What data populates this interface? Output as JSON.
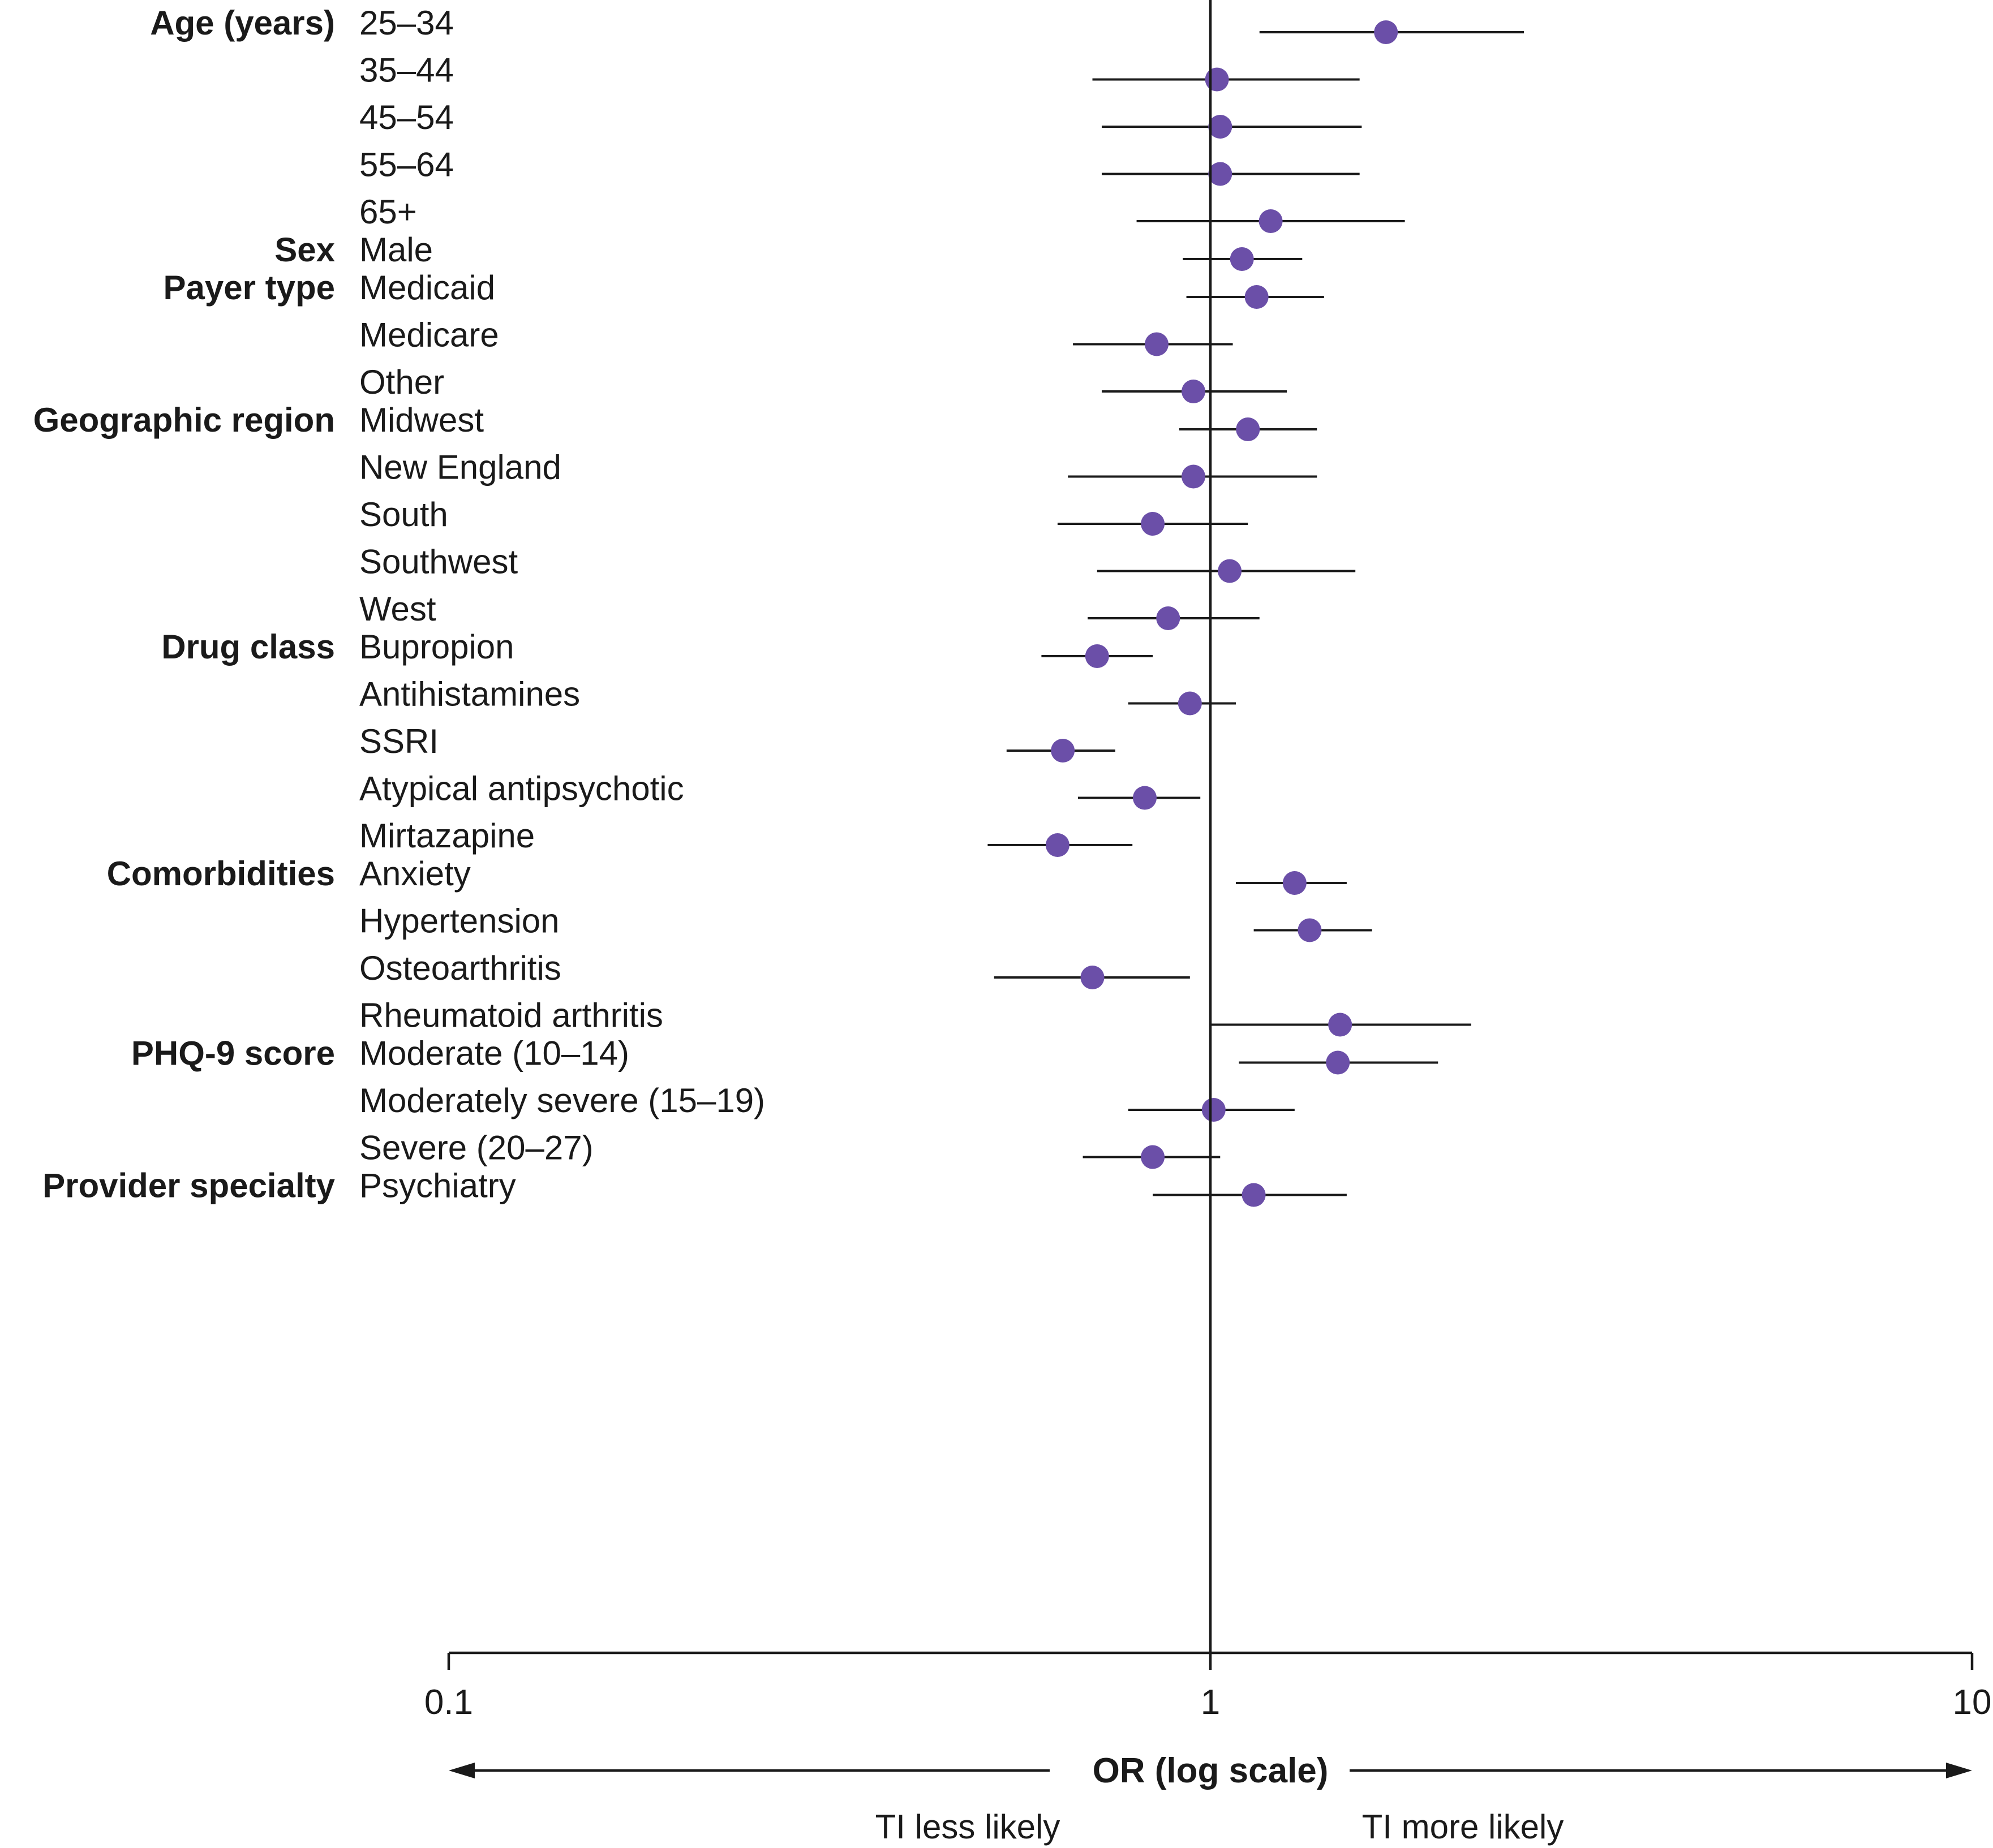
{
  "chart_data": {
    "type": "scatter",
    "subtype": "forest-plot",
    "x_scale": "log",
    "xlim": [
      0.1,
      10
    ],
    "ticks": [
      {
        "value": 0.1,
        "label": "0.1"
      },
      {
        "value": 1,
        "label": "1"
      },
      {
        "value": 10,
        "label": "10"
      }
    ],
    "reference_value": 1,
    "xlabel": "OR (log scale)",
    "direction_labels": {
      "left": "TI less likely",
      "right": "TI more likely"
    },
    "marker_color": "#6b4fa8",
    "groups": [
      {
        "label": "Age (years)",
        "rows": [
          {
            "label": "25–34",
            "or": 1.7,
            "ci": [
              1.16,
              2.58
            ]
          },
          {
            "label": "35–44",
            "or": 1.02,
            "ci": [
              0.7,
              1.57
            ]
          },
          {
            "label": "45–54",
            "or": 1.03,
            "ci": [
              0.72,
              1.58
            ]
          },
          {
            "label": "55–64",
            "or": 1.03,
            "ci": [
              0.72,
              1.57
            ]
          },
          {
            "label": "65+",
            "or": 1.2,
            "ci": [
              0.8,
              1.8
            ]
          }
        ]
      },
      {
        "label": "Sex",
        "rows": [
          {
            "label": "Male",
            "or": 1.1,
            "ci": [
              0.92,
              1.32
            ]
          }
        ]
      },
      {
        "label": "Payer type",
        "rows": [
          {
            "label": "Medicaid",
            "or": 1.15,
            "ci": [
              0.93,
              1.41
            ]
          },
          {
            "label": "Medicare",
            "or": 0.85,
            "ci": [
              0.66,
              1.07
            ]
          },
          {
            "label": "Other",
            "or": 0.95,
            "ci": [
              0.72,
              1.26
            ]
          }
        ]
      },
      {
        "label": "Geographic region",
        "rows": [
          {
            "label": "Midwest",
            "or": 1.12,
            "ci": [
              0.91,
              1.38
            ]
          },
          {
            "label": "New England",
            "or": 0.95,
            "ci": [
              0.65,
              1.38
            ]
          },
          {
            "label": "South",
            "or": 0.84,
            "ci": [
              0.63,
              1.12
            ]
          },
          {
            "label": "Southwest",
            "or": 1.06,
            "ci": [
              0.71,
              1.55
            ]
          },
          {
            "label": "West",
            "or": 0.88,
            "ci": [
              0.69,
              1.16
            ]
          }
        ]
      },
      {
        "label": "Drug class",
        "rows": [
          {
            "label": "Bupropion",
            "or": 0.71,
            "ci": [
              0.6,
              0.84
            ]
          },
          {
            "label": "Antihistamines",
            "or": 0.94,
            "ci": [
              0.78,
              1.08
            ]
          },
          {
            "label": "SSRI",
            "or": 0.64,
            "ci": [
              0.54,
              0.75
            ]
          },
          {
            "label": "Atypical antipsychotic",
            "or": 0.82,
            "ci": [
              0.67,
              0.97
            ]
          },
          {
            "label": "Mirtazapine",
            "or": 0.63,
            "ci": [
              0.51,
              0.79
            ]
          }
        ]
      },
      {
        "label": "Comorbidities",
        "rows": [
          {
            "label": "Anxiety",
            "or": 1.29,
            "ci": [
              1.08,
              1.51
            ]
          },
          {
            "label": "Hypertension",
            "or": 1.35,
            "ci": [
              1.14,
              1.63
            ]
          },
          {
            "label": "Osteoarthritis",
            "or": 0.7,
            "ci": [
              0.52,
              0.94
            ]
          },
          {
            "label": "Rheumatoid arthritis",
            "or": 1.48,
            "ci": [
              1.0,
              2.2
            ]
          }
        ]
      },
      {
        "label": "PHQ-9 score",
        "rows": [
          {
            "label": "Moderate (10–14)",
            "or": 1.47,
            "ci": [
              1.09,
              1.99
            ]
          },
          {
            "label": "Moderately severe (15–19)",
            "or": 1.01,
            "ci": [
              0.78,
              1.29
            ]
          },
          {
            "label": "Severe (20–27)",
            "or": 0.84,
            "ci": [
              0.68,
              1.03
            ]
          }
        ]
      },
      {
        "label": "Provider specialty",
        "rows": [
          {
            "label": "Psychiatry",
            "or": 1.14,
            "ci": [
              0.84,
              1.51
            ]
          }
        ]
      }
    ]
  }
}
